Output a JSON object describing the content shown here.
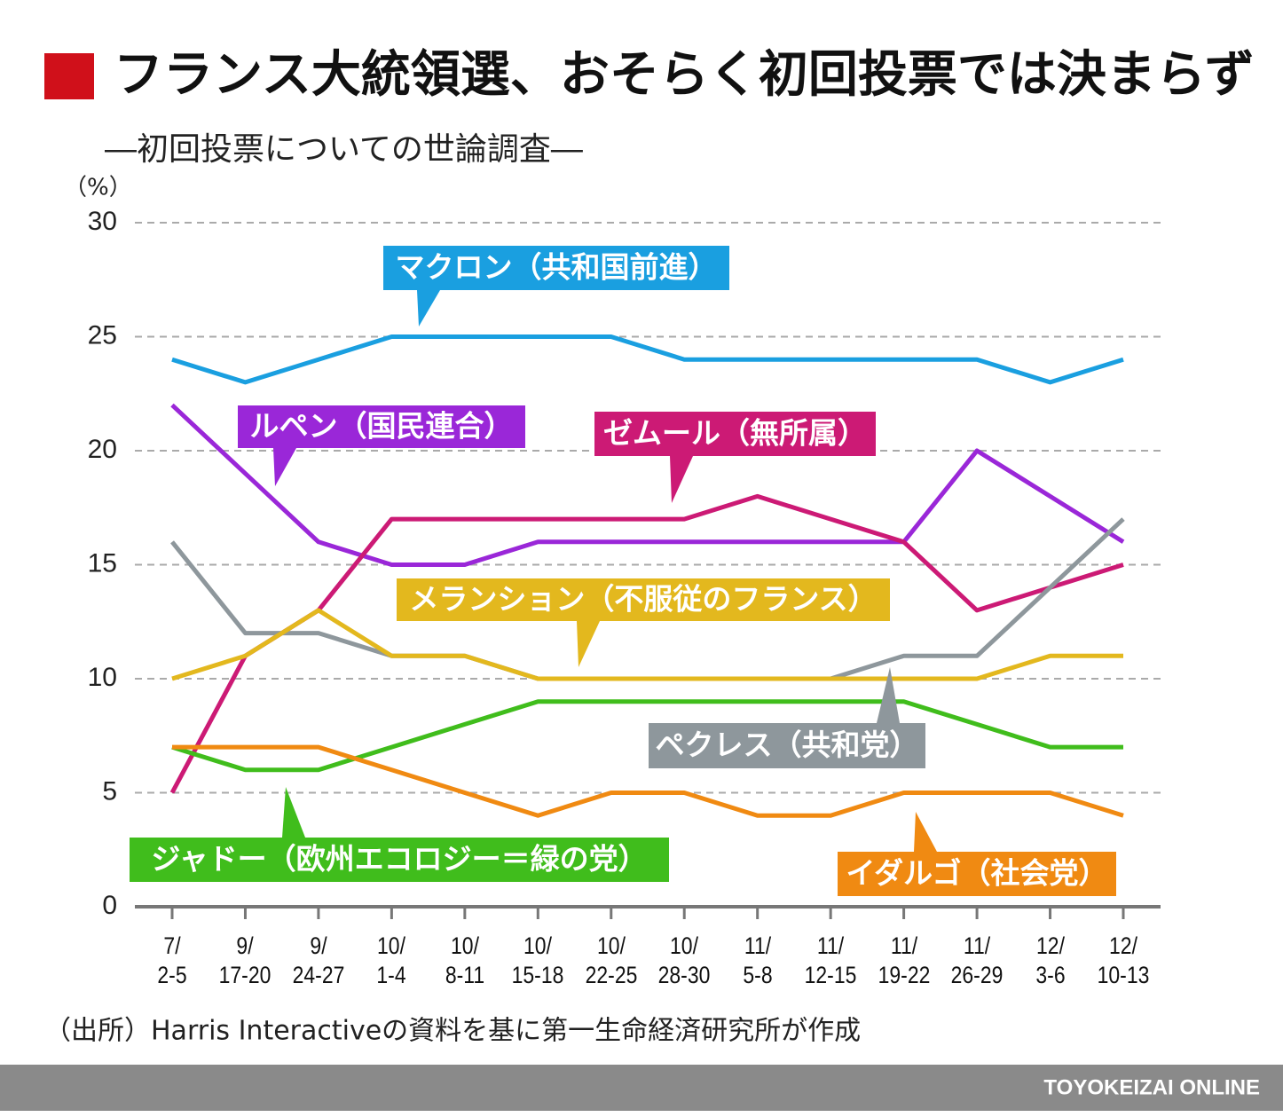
{
  "chart_data": {
    "type": "line",
    "title": "フランス大統領選、おそらく初回投票では決まらず",
    "subtitle": "―初回投票についての世論調査―",
    "y_unit": "（%）",
    "source": "（出所）Harris Interactiveの資料を基に第一生命経済研究所が作成",
    "footer": "TOYOKEIZAI ONLINE",
    "categories": [
      "7/\n2-5",
      "9/\n17-20",
      "9/\n24-27",
      "10/\n1-4",
      "10/\n8-11",
      "10/\n15-18",
      "10/\n22-25",
      "10/\n28-30",
      "11/\n5-8",
      "11/\n12-15",
      "11/\n19-22",
      "11/\n26-29",
      "12/\n3-6",
      "12/\n10-13"
    ],
    "ylim": [
      0,
      30
    ],
    "yticks": [
      0,
      5,
      10,
      15,
      20,
      25,
      30
    ],
    "grid": true,
    "series": [
      {
        "name": "マクロン（共和国前進）",
        "color": "#1a9fe0",
        "values": [
          24,
          23,
          24,
          25,
          25,
          25,
          25,
          24,
          24,
          24,
          24,
          24,
          23,
          24
        ]
      },
      {
        "name": "ルペン（国民連合）",
        "color": "#9a27d8",
        "values": [
          22,
          19,
          16,
          15,
          15,
          16,
          16,
          16,
          16,
          16,
          16,
          20,
          18,
          16
        ]
      },
      {
        "name": "ゼムール（無所属）",
        "color": "#cc1a75",
        "values": [
          5,
          11,
          13,
          17,
          17,
          17,
          17,
          17,
          18,
          17,
          16,
          13,
          14,
          15
        ]
      },
      {
        "name": "ペクレス（共和党）",
        "color": "#8e979c",
        "values": [
          16,
          12,
          12,
          11,
          11,
          10,
          10,
          10,
          10,
          10,
          11,
          11,
          14,
          17
        ]
      },
      {
        "name": "メランション（不服従のフランス）",
        "color": "#e3b81e",
        "values": [
          10,
          11,
          13,
          11,
          11,
          10,
          10,
          10,
          10,
          10,
          10,
          10,
          11,
          11
        ]
      },
      {
        "name": "ジャドー（欧州エコロジー＝緑の党）",
        "color": "#40bd1c",
        "values": [
          7,
          6,
          6,
          7,
          8,
          9,
          9,
          9,
          9,
          9,
          9,
          8,
          7,
          7
        ]
      },
      {
        "name": "イダルゴ（社会党）",
        "color": "#f08a12",
        "values": [
          7,
          7,
          7,
          6,
          5,
          4,
          5,
          5,
          4,
          4,
          5,
          5,
          5,
          4
        ]
      }
    ]
  }
}
